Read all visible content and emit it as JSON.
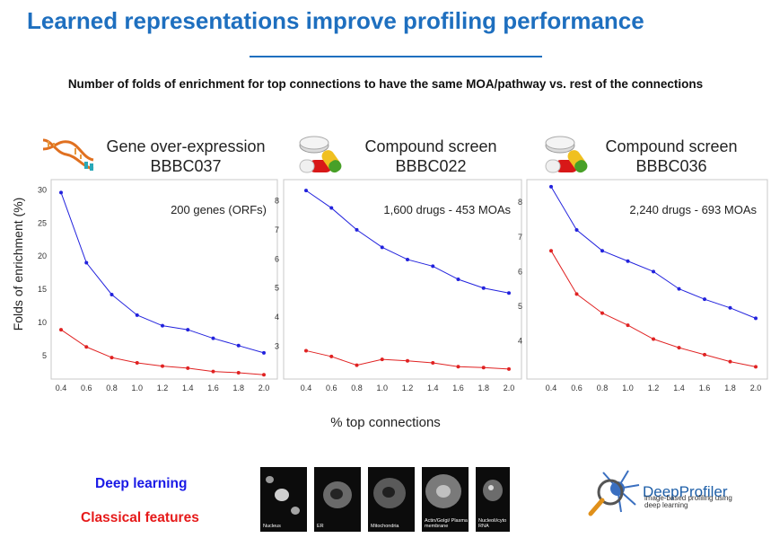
{
  "title": "Learned representations improve profiling performance",
  "subtitle": "Number of folds of enrichment for top connections to have the same MOA/pathway vs. rest of the connections",
  "ylabel": "Folds of enrichment (%)",
  "xlabel": "% top connections",
  "panels": [
    {
      "line1": "Gene over-expression",
      "line2": "BBBC037",
      "annotation": "200 genes (ORFs)",
      "icon": "dna-icon"
    },
    {
      "line1": "Compound screen",
      "line2": "BBBC022",
      "annotation": "1,600 drugs - 453 MOAs",
      "icon": "pills-icon"
    },
    {
      "line1": "Compound screen",
      "line2": "BBBC036",
      "annotation": "2,240 drugs - 693 MOAs",
      "icon": "pills-icon"
    }
  ],
  "legend": {
    "deep": "Deep learning",
    "classical": "Classical features"
  },
  "colors": {
    "deep": "#2222dd",
    "classical": "#e02222",
    "title": "#1e6fbf"
  },
  "cells": [
    {
      "label": "Nucleus"
    },
    {
      "label": "ER"
    },
    {
      "label": "Mitochondria"
    },
    {
      "label": "Actin/Golgi/ Plasma membrane"
    },
    {
      "label": "Nucleoli/cyto RNA"
    }
  ],
  "brand": {
    "name": "DeepProfiler",
    "tagline": "image-based profiling using deep learning"
  },
  "chart_data": [
    {
      "type": "line",
      "title": "Gene over-expression BBBC037",
      "x": [
        0.4,
        0.6,
        0.8,
        1.0,
        1.2,
        1.4,
        1.6,
        1.8,
        2.0
      ],
      "xticks": [
        "0.4",
        "0.6",
        "0.8",
        "1.0",
        "1.2",
        "1.4",
        "1.6",
        "1.8",
        "2.0"
      ],
      "yticks": [
        5,
        10,
        15,
        20,
        25,
        30
      ],
      "ylim": [
        2,
        31
      ],
      "series": [
        {
          "name": "Deep learning",
          "values": [
            29.6,
            19.0,
            14.2,
            11.1,
            9.5,
            8.9,
            7.6,
            6.5,
            5.4
          ]
        },
        {
          "name": "Classical features",
          "values": [
            8.9,
            6.3,
            4.7,
            3.9,
            3.4,
            3.1,
            2.6,
            2.4,
            2.1
          ]
        }
      ]
    },
    {
      "type": "line",
      "title": "Compound screen BBBC022",
      "x": [
        0.4,
        0.6,
        0.8,
        1.0,
        1.2,
        1.4,
        1.6,
        1.8,
        2.0
      ],
      "xticks": [
        "0.4",
        "0.6",
        "0.8",
        "1.0",
        "1.2",
        "1.4",
        "1.6",
        "1.8",
        "2.0"
      ],
      "yticks": [
        3,
        4,
        5,
        6,
        7,
        8
      ],
      "ylim": [
        2.0,
        8.6
      ],
      "series": [
        {
          "name": "Deep learning",
          "values": [
            8.35,
            7.75,
            7.0,
            6.4,
            5.98,
            5.75,
            5.3,
            5.0,
            4.83
          ]
        },
        {
          "name": "Classical features",
          "values": [
            2.85,
            2.65,
            2.35,
            2.55,
            2.5,
            2.43,
            2.3,
            2.27,
            2.22
          ]
        }
      ]
    },
    {
      "type": "line",
      "title": "Compound screen BBBC036",
      "x": [
        0.4,
        0.6,
        0.8,
        1.0,
        1.2,
        1.4,
        1.6,
        1.8,
        2.0
      ],
      "xticks": [
        "0.4",
        "0.6",
        "0.8",
        "1.0",
        "1.2",
        "1.4",
        "1.6",
        "1.8",
        "2.0"
      ],
      "yticks": [
        4,
        5,
        6,
        7,
        8
      ],
      "ylim": [
        3.0,
        8.55
      ],
      "series": [
        {
          "name": "Deep learning",
          "values": [
            8.45,
            7.2,
            6.6,
            6.3,
            6.0,
            5.5,
            5.2,
            4.95,
            4.65
          ]
        },
        {
          "name": "Classical features",
          "values": [
            6.6,
            5.35,
            4.8,
            4.45,
            4.05,
            3.8,
            3.6,
            3.4,
            3.25
          ]
        }
      ]
    }
  ]
}
